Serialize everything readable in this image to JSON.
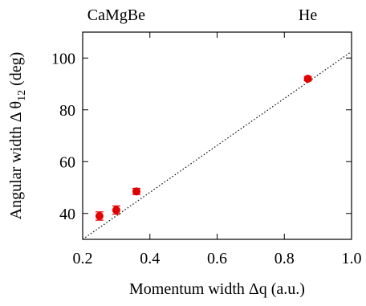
{
  "chart_data": {
    "type": "scatter",
    "xlabel": "Momentum width Δq (a.u.)",
    "ylabel_main": "Angular width Δ θ",
    "ylabel_sub": "12",
    "ylabel_unit": " (deg)",
    "xlim": [
      0.2,
      1.0
    ],
    "ylim": [
      30,
      110
    ],
    "xticks": [
      0.2,
      0.4,
      0.6,
      0.8,
      1.0
    ],
    "xtick_labels": [
      "0.2",
      "0.4",
      "0.6",
      "0.8",
      "1.0"
    ],
    "yticks": [
      40,
      60,
      80,
      100
    ],
    "ytick_labels": [
      "40",
      "60",
      "80",
      "100"
    ],
    "top_labels": [
      {
        "text": "CaMgBe",
        "x": 0.3
      },
      {
        "text": "He",
        "x": 0.87
      }
    ],
    "series": [
      {
        "points": [
          {
            "x": 0.25,
            "y": 39.0,
            "yerr": 1.6
          },
          {
            "x": 0.3,
            "y": 41.3,
            "yerr": 1.6
          },
          {
            "x": 0.36,
            "y": 48.5,
            "yerr": 1.2
          },
          {
            "x": 0.87,
            "y": 92.0,
            "yerr": 0.8
          }
        ],
        "color": "#e00000"
      }
    ],
    "fit_line": {
      "x": [
        0.2,
        1.0
      ],
      "y": [
        30.0,
        102.5
      ],
      "style": "dotted"
    },
    "grid": false
  }
}
